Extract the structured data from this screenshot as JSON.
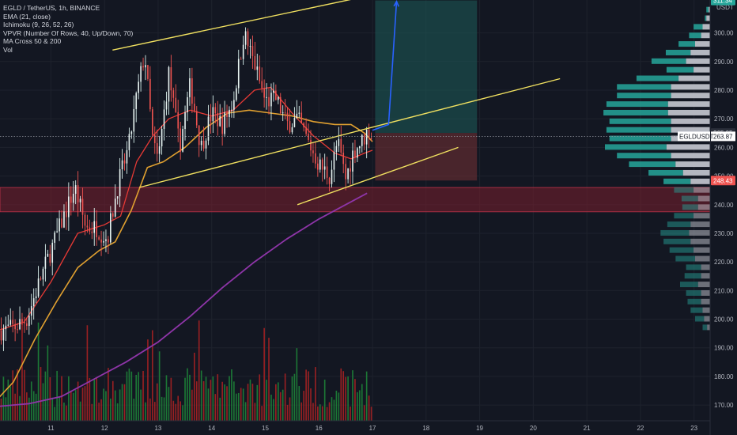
{
  "legend": {
    "symbol": "EGLD / TetherUS, 1h, BINANCE",
    "indicators": [
      "EMA (21, close)",
      "Ichimoku (9, 26, 52, 26)",
      "VPVR (Number Of Rows, 40, Up/Down, 70)",
      "MA Cross 50 & 200",
      "Vol"
    ]
  },
  "currency": "USDT",
  "price_tags": {
    "target": "311.34",
    "entry": "265.05",
    "current": "263.87",
    "stop": "248.43",
    "symbol_label": "EGLDUSDT"
  },
  "colors": {
    "background": "#131722",
    "bull": "#26a69a",
    "bear": "#ef5350",
    "volume_up": "#1f8a3a",
    "volume_down": "#b22222",
    "ema": "#e53935",
    "ma50": "#e0a030",
    "ma200": "#8e35a8",
    "trendline": "#f0e060",
    "arrow": "#2962ff",
    "support_zone": "#7a1f2e",
    "target_zone": "#1d5c5a",
    "stop_zone": "#6e2e33",
    "vpvr_up": "#26a69a",
    "vpvr_down": "#d1d4dc"
  },
  "chart_data": {
    "type": "candlestick",
    "x_axis": {
      "unit": "day",
      "tick_labels": [
        "11",
        "12",
        "13",
        "14",
        "15",
        "16",
        "17",
        "18",
        "19",
        "20",
        "21",
        "22",
        "23"
      ],
      "range": [
        10.05,
        23.3
      ]
    },
    "y_axis": {
      "side": "right",
      "tick_labels": [
        "300.00",
        "290.00",
        "280.00",
        "270.00",
        "260.00",
        "250.00",
        "240.00",
        "230.00",
        "220.00",
        "210.00",
        "200.00",
        "190.00",
        "180.00",
        "170.00"
      ],
      "range": [
        164.5,
        311.5
      ]
    },
    "price_path": [
      [
        10.05,
        196
      ],
      [
        10.3,
        197
      ],
      [
        10.55,
        200
      ],
      [
        10.8,
        214
      ],
      [
        11.0,
        224
      ],
      [
        11.2,
        234
      ],
      [
        11.45,
        246
      ],
      [
        11.65,
        232
      ],
      [
        11.85,
        232
      ],
      [
        12.05,
        228
      ],
      [
        12.25,
        247
      ],
      [
        12.45,
        260
      ],
      [
        12.6,
        278
      ],
      [
        12.75,
        293
      ],
      [
        12.9,
        262
      ],
      [
        13.0,
        255
      ],
      [
        13.2,
        286
      ],
      [
        13.4,
        260
      ],
      [
        13.6,
        282
      ],
      [
        13.8,
        260
      ],
      [
        14.0,
        272
      ],
      [
        14.2,
        268
      ],
      [
        14.4,
        276
      ],
      [
        14.6,
        300
      ],
      [
        14.8,
        289
      ],
      [
        15.0,
        276
      ],
      [
        15.2,
        277
      ],
      [
        15.4,
        268
      ],
      [
        15.6,
        270
      ],
      [
        15.8,
        262
      ],
      [
        16.0,
        254
      ],
      [
        16.2,
        250
      ],
      [
        16.35,
        262
      ],
      [
        16.5,
        249
      ],
      [
        16.65,
        259
      ],
      [
        16.8,
        262
      ],
      [
        16.92,
        266
      ],
      [
        17.0,
        264
      ]
    ],
    "candle_count": 160,
    "series": [
      {
        "name": "EMA (21, close)",
        "values": [
          [
            10.0,
            196
          ],
          [
            10.5,
            199
          ],
          [
            11.0,
            213
          ],
          [
            11.5,
            230
          ],
          [
            12.0,
            233
          ],
          [
            12.3,
            236
          ],
          [
            12.6,
            255
          ],
          [
            12.9,
            264
          ],
          [
            13.2,
            270
          ],
          [
            13.6,
            273
          ],
          [
            14.0,
            271
          ],
          [
            14.4,
            273
          ],
          [
            14.8,
            280
          ],
          [
            15.1,
            281
          ],
          [
            15.5,
            272
          ],
          [
            15.9,
            264
          ],
          [
            16.3,
            258
          ],
          [
            16.6,
            256
          ],
          [
            16.85,
            258
          ],
          [
            17.0,
            259
          ]
        ]
      },
      {
        "name": "MA 50",
        "values": [
          [
            10.0,
            172
          ],
          [
            10.3,
            178
          ],
          [
            10.7,
            193
          ],
          [
            11.1,
            206
          ],
          [
            11.5,
            218
          ],
          [
            11.9,
            224
          ],
          [
            12.2,
            227
          ],
          [
            12.5,
            238
          ],
          [
            12.8,
            253
          ],
          [
            13.1,
            255
          ],
          [
            13.5,
            260
          ],
          [
            13.9,
            267
          ],
          [
            14.3,
            272
          ],
          [
            14.7,
            273
          ],
          [
            15.1,
            272
          ],
          [
            15.5,
            271
          ],
          [
            15.9,
            269
          ],
          [
            16.3,
            268
          ],
          [
            16.6,
            268
          ],
          [
            16.85,
            265
          ],
          [
            17.0,
            262
          ]
        ]
      },
      {
        "name": "MA 200",
        "values": [
          [
            10.0,
            169.5
          ],
          [
            10.6,
            170.5
          ],
          [
            11.2,
            173
          ],
          [
            11.8,
            179
          ],
          [
            12.4,
            185
          ],
          [
            13.0,
            192
          ],
          [
            13.6,
            201
          ],
          [
            14.2,
            211
          ],
          [
            14.8,
            220
          ],
          [
            15.4,
            228
          ],
          [
            16.0,
            235
          ],
          [
            16.5,
            240
          ],
          [
            16.9,
            244
          ]
        ]
      },
      {
        "name": "Upper channel",
        "values": [
          [
            12.15,
            294
          ],
          [
            17.05,
            313.5
          ]
        ]
      },
      {
        "name": "Lower channel",
        "values": [
          [
            12.65,
            246
          ],
          [
            20.5,
            284
          ]
        ]
      },
      {
        "name": "Lower support",
        "values": [
          [
            15.6,
            240
          ],
          [
            18.6,
            260
          ]
        ]
      }
    ],
    "zones": {
      "support": [
        237.5,
        246
      ],
      "target": [
        265.05,
        311.34
      ],
      "stop": [
        248.43,
        265.05
      ],
      "target_x": [
        17.05,
        18.95
      ]
    },
    "projection_arrow": [
      [
        17.0,
        266
      ],
      [
        17.3,
        268
      ],
      [
        17.45,
        311
      ]
    ],
    "current_price": 263.87,
    "volume_profile": {
      "price_levels": [
        308,
        305,
        302,
        299,
        296,
        293,
        290,
        287,
        284,
        281,
        278,
        275,
        272,
        269,
        266,
        263,
        260,
        257,
        254,
        251,
        248,
        245,
        242,
        239,
        236,
        233,
        230,
        227,
        224,
        221,
        218,
        215,
        212,
        209,
        206,
        203,
        200,
        197
      ],
      "up": [
        0.03,
        0.02,
        0.12,
        0.16,
        0.22,
        0.33,
        0.46,
        0.36,
        0.56,
        0.72,
        0.72,
        0.82,
        0.86,
        0.82,
        0.86,
        0.82,
        0.82,
        0.72,
        0.62,
        0.46,
        0.36,
        0.26,
        0.22,
        0.21,
        0.26,
        0.31,
        0.38,
        0.36,
        0.32,
        0.26,
        0.2,
        0.22,
        0.24,
        0.2,
        0.18,
        0.16,
        0.12,
        0.06
      ],
      "down": [
        0.02,
        0.05,
        0.1,
        0.12,
        0.2,
        0.26,
        0.32,
        0.22,
        0.42,
        0.52,
        0.52,
        0.56,
        0.56,
        0.52,
        0.52,
        0.52,
        0.58,
        0.52,
        0.46,
        0.36,
        0.26,
        0.22,
        0.16,
        0.16,
        0.22,
        0.26,
        0.28,
        0.26,
        0.22,
        0.2,
        0.12,
        0.12,
        0.16,
        0.12,
        0.12,
        0.1,
        0.08,
        0.04
      ]
    },
    "volume": {
      "max_relative": 1.0,
      "note_series": "volume bars, relative scale 0-1"
    }
  }
}
